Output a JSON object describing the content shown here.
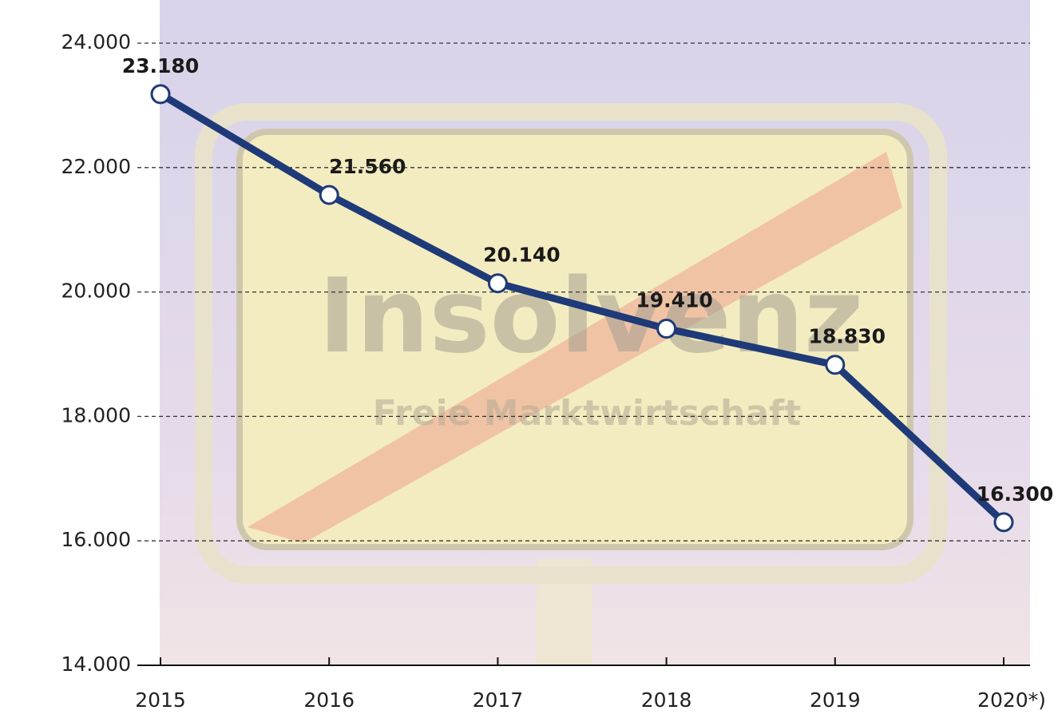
{
  "chart_data": {
    "type": "line",
    "categories": [
      "2015",
      "2016",
      "2017",
      "2018",
      "2019",
      "2020*)"
    ],
    "series": [
      {
        "name": null,
        "color": "#1f3a78",
        "values": [
          23180,
          21560,
          20140,
          19410,
          18830,
          16300
        ],
        "value_labels": [
          "23.180",
          "21.560",
          "20.140",
          "19.410",
          "18.830",
          "16.300"
        ]
      }
    ],
    "ylim": [
      14000,
      24000
    ],
    "yticks": [
      {
        "value": 14000,
        "label": "14.000"
      },
      {
        "value": 16000,
        "label": "16.000"
      },
      {
        "value": 18000,
        "label": "18.000"
      },
      {
        "value": 20000,
        "label": "20.000"
      },
      {
        "value": 22000,
        "label": "22.000"
      },
      {
        "value": 24000,
        "label": "24.000"
      }
    ],
    "grid": true,
    "annotations": [
      "Insolvenz",
      "Freie Marktwirtschaft"
    ]
  }
}
